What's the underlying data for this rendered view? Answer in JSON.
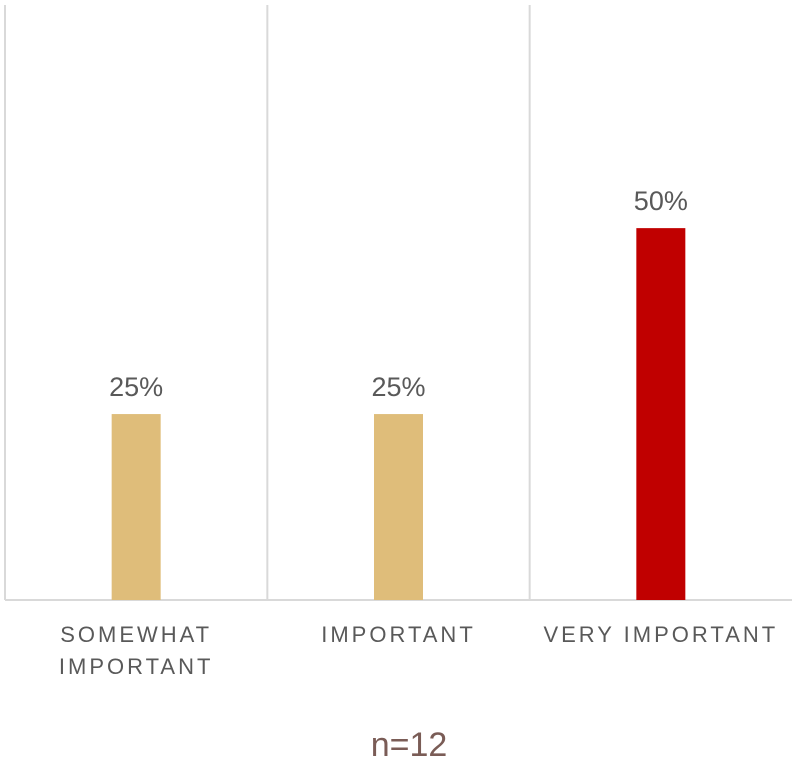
{
  "chart_data": {
    "type": "bar",
    "categories": [
      "SOMEWHAT IMPORTANT",
      "IMPORTANT",
      "VERY IMPORTANT"
    ],
    "values": [
      25,
      25,
      50
    ],
    "data_labels": [
      "25%",
      "25%",
      "50%"
    ],
    "ylim": [
      0,
      80
    ],
    "bar_colors": [
      "#dfbd7a",
      "#dfbd7a",
      "#c00000"
    ],
    "gridlines": "vertical category separators",
    "note": "n=12"
  }
}
